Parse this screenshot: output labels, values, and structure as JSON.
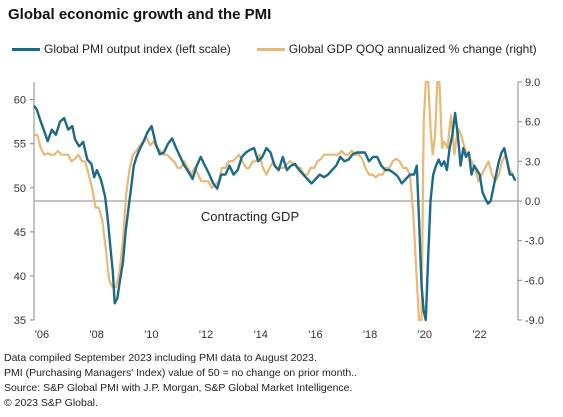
{
  "title": "Global economic growth and the PMI",
  "legend": [
    {
      "label": "Global PMI output index (left scale)",
      "color": "#1b6a87"
    },
    {
      "label": "Global GDP QOQ annualized % change (right)",
      "color": "#e8b976"
    }
  ],
  "annotation": "Contracting GDP",
  "footnotes": [
    "Data compiled September 2023 including PMI data to August 2023.",
    "PMI (Purchasing Managers' Index) value of 50 = no change on prior month..",
    "Source: S&P Global PMI with J.P. Morgan, S&P Global Market Intelligence.",
    "© 2023 S&P Global."
  ],
  "chart_data": {
    "type": "line",
    "title": "Global economic growth and the PMI",
    "xlim": [
      2006,
      2023.7
    ],
    "x_ticks": [
      2006,
      2008,
      2010,
      2012,
      2014,
      2016,
      2018,
      2020,
      2022
    ],
    "x_tick_labels": [
      "'06",
      "'08",
      "'10",
      "'12",
      "'14",
      "'16",
      "'18",
      "'20",
      "'22"
    ],
    "left_axis": {
      "ylim": [
        35,
        62
      ],
      "ticks": [
        35,
        40,
        45,
        50,
        55,
        60
      ],
      "tick_labels": [
        "35",
        "40",
        "45",
        "50",
        "55",
        "60"
      ]
    },
    "right_axis": {
      "ylim": [
        -9,
        9
      ],
      "ticks": [
        -9,
        -6,
        -3,
        0,
        3,
        6,
        9
      ],
      "tick_labels": [
        "-9.0",
        "-6.0",
        "-3.0",
        "0.0",
        "3.0",
        "6.0",
        "9.0"
      ]
    },
    "reference_line": {
      "axis": "right",
      "value": 0
    },
    "series": [
      {
        "name": "Global PMI output index (left scale)",
        "axis": "left",
        "color": "#1b6a87",
        "x": [
          2006.0,
          2006.1,
          2006.25,
          2006.4,
          2006.5,
          2006.65,
          2006.8,
          2006.95,
          2007.1,
          2007.25,
          2007.4,
          2007.5,
          2007.65,
          2007.8,
          2007.95,
          2008.1,
          2008.2,
          2008.3,
          2008.45,
          2008.6,
          2008.7,
          2008.8,
          2008.88,
          2008.95,
          2009.05,
          2009.15,
          2009.25,
          2009.35,
          2009.45,
          2009.55,
          2009.65,
          2009.75,
          2009.85,
          2010.0,
          2010.15,
          2010.3,
          2010.45,
          2010.6,
          2010.75,
          2010.9,
          2011.05,
          2011.2,
          2011.35,
          2011.5,
          2011.65,
          2011.8,
          2011.95,
          2012.1,
          2012.25,
          2012.4,
          2012.55,
          2012.7,
          2012.85,
          2013.0,
          2013.15,
          2013.3,
          2013.45,
          2013.6,
          2013.75,
          2013.9,
          2014.05,
          2014.2,
          2014.35,
          2014.5,
          2014.65,
          2014.8,
          2014.95,
          2015.1,
          2015.25,
          2015.4,
          2015.55,
          2015.7,
          2015.85,
          2016.0,
          2016.15,
          2016.3,
          2016.45,
          2016.6,
          2016.75,
          2016.9,
          2017.05,
          2017.2,
          2017.35,
          2017.5,
          2017.65,
          2017.8,
          2017.95,
          2018.1,
          2018.25,
          2018.4,
          2018.55,
          2018.7,
          2018.85,
          2019.0,
          2019.15,
          2019.3,
          2019.45,
          2019.6,
          2019.75,
          2019.9,
          2020.0,
          2020.08,
          2020.17,
          2020.25,
          2020.33,
          2020.42,
          2020.5,
          2020.6,
          2020.7,
          2020.8,
          2020.9,
          2021.0,
          2021.1,
          2021.2,
          2021.3,
          2021.4,
          2021.5,
          2021.6,
          2021.7,
          2021.8,
          2021.9,
          2022.0,
          2022.1,
          2022.2,
          2022.3,
          2022.4,
          2022.5,
          2022.6,
          2022.7,
          2022.8,
          2022.9,
          2023.0,
          2023.1,
          2023.2,
          2023.3,
          2023.4,
          2023.5,
          2023.6
        ],
        "values": [
          59.3,
          58.9,
          57.5,
          56.2,
          55.3,
          56.6,
          56.0,
          57.5,
          57.9,
          56.6,
          57.0,
          55.5,
          54.7,
          55.2,
          53.2,
          52.7,
          51.2,
          52.0,
          50.9,
          49.0,
          46.4,
          43.0,
          40.5,
          36.9,
          37.5,
          39.6,
          41.5,
          45.0,
          47.5,
          50.0,
          52.5,
          53.5,
          54.3,
          55.2,
          56.3,
          57.0,
          55.0,
          53.8,
          54.0,
          55.0,
          55.6,
          54.5,
          53.5,
          52.5,
          51.8,
          51.0,
          52.5,
          53.5,
          52.5,
          51.6,
          50.5,
          49.9,
          51.5,
          51.5,
          52.5,
          51.5,
          52.0,
          53.5,
          54.0,
          54.3,
          54.5,
          53.0,
          53.5,
          54.5,
          54.0,
          52.5,
          52.0,
          53.5,
          52.0,
          52.5,
          52.7,
          52.0,
          51.5,
          51.0,
          50.5,
          51.0,
          51.5,
          51.2,
          51.5,
          52.0,
          52.5,
          53.5,
          53.0,
          53.2,
          53.8,
          54.0,
          54.0,
          54.0,
          53.0,
          53.5,
          53.5,
          52.5,
          52.0,
          52.0,
          51.7,
          51.3,
          50.5,
          51.0,
          51.5,
          51.5,
          52.5,
          46.5,
          39.0,
          36.0,
          35.0,
          42.5,
          48.5,
          51.5,
          52.5,
          53.2,
          52.5,
          53.0,
          52.0,
          54.5,
          56.0,
          58.5,
          56.0,
          52.5,
          54.5,
          53.5,
          54.0,
          51.5,
          52.5,
          52.0,
          51.5,
          49.5,
          48.8,
          48.2,
          48.5,
          50.0,
          51.5,
          53.0,
          54.0,
          54.5,
          53.0,
          51.5,
          51.5,
          50.8
        ]
      },
      {
        "name": "Global GDP QOQ annualized % change (right)",
        "axis": "right",
        "color": "#e8b976",
        "x": [
          2006.0,
          2006.12,
          2006.25,
          2006.37,
          2006.5,
          2006.62,
          2006.75,
          2006.87,
          2007.0,
          2007.12,
          2007.25,
          2007.37,
          2007.5,
          2007.62,
          2007.75,
          2007.87,
          2008.0,
          2008.12,
          2008.25,
          2008.37,
          2008.5,
          2008.62,
          2008.75,
          2008.87,
          2009.0,
          2009.12,
          2009.25,
          2009.37,
          2009.5,
          2009.62,
          2009.75,
          2009.87,
          2010.0,
          2010.12,
          2010.25,
          2010.37,
          2010.5,
          2010.62,
          2010.75,
          2010.87,
          2011.0,
          2011.12,
          2011.25,
          2011.37,
          2011.5,
          2011.62,
          2011.75,
          2011.87,
          2012.0,
          2012.12,
          2012.25,
          2012.37,
          2012.5,
          2012.62,
          2012.75,
          2012.87,
          2013.0,
          2013.12,
          2013.25,
          2013.37,
          2013.5,
          2013.62,
          2013.75,
          2013.87,
          2014.0,
          2014.12,
          2014.25,
          2014.37,
          2014.5,
          2014.62,
          2014.75,
          2014.87,
          2015.0,
          2015.12,
          2015.25,
          2015.37,
          2015.5,
          2015.62,
          2015.75,
          2015.87,
          2016.0,
          2016.12,
          2016.25,
          2016.37,
          2016.5,
          2016.62,
          2016.75,
          2016.87,
          2017.0,
          2017.12,
          2017.25,
          2017.37,
          2017.5,
          2017.62,
          2017.75,
          2017.87,
          2018.0,
          2018.12,
          2018.25,
          2018.37,
          2018.5,
          2018.62,
          2018.75,
          2018.87,
          2019.0,
          2019.12,
          2019.25,
          2019.37,
          2019.5,
          2019.62,
          2019.75,
          2019.87,
          2020.0,
          2020.08,
          2020.17,
          2020.25,
          2020.33,
          2020.42,
          2020.5,
          2020.58,
          2020.67,
          2020.75,
          2020.83,
          2020.92,
          2021.0,
          2021.12,
          2021.25,
          2021.37,
          2021.5,
          2021.62,
          2021.75,
          2021.87,
          2022.0,
          2022.12,
          2022.25,
          2022.37,
          2022.5,
          2022.62,
          2022.75,
          2022.87,
          2023.0,
          2023.12,
          2023.25,
          2023.37,
          2023.5
        ],
        "values": [
          5.0,
          5.0,
          4.0,
          3.5,
          3.6,
          3.5,
          3.5,
          3.8,
          3.5,
          3.5,
          3.5,
          3.0,
          3.2,
          3.5,
          3.0,
          3.0,
          2.0,
          1.0,
          -0.5,
          -0.5,
          -1.5,
          -3.5,
          -6.0,
          -6.5,
          -6.5,
          -5.5,
          -3.0,
          0.5,
          2.5,
          3.5,
          3.8,
          4.2,
          4.5,
          4.8,
          4.2,
          4.5,
          4.0,
          3.8,
          3.5,
          3.5,
          3.2,
          3.0,
          2.5,
          2.5,
          3.0,
          2.5,
          2.0,
          2.5,
          2.0,
          1.5,
          1.5,
          1.5,
          1.0,
          1.2,
          1.5,
          2.5,
          2.5,
          3.0,
          3.0,
          3.2,
          3.5,
          3.0,
          2.5,
          2.5,
          3.0,
          3.0,
          3.5,
          2.5,
          2.0,
          2.5,
          3.0,
          2.5,
          2.5,
          2.5,
          2.8,
          3.0,
          2.8,
          2.5,
          2.5,
          2.0,
          2.0,
          2.5,
          2.5,
          3.0,
          3.2,
          3.5,
          3.5,
          3.5,
          3.5,
          3.5,
          3.8,
          3.5,
          3.5,
          3.8,
          3.5,
          3.5,
          3.2,
          2.5,
          2.0,
          2.0,
          1.8,
          2.0,
          2.0,
          2.5,
          2.5,
          3.0,
          3.2,
          3.0,
          2.5,
          2.5,
          2.0,
          -1.0,
          -6.0,
          -9.0,
          -9.0,
          6.0,
          9.0,
          9.0,
          5.5,
          3.5,
          5.0,
          9.0,
          9.0,
          4.0,
          4.5,
          4.0,
          6.5,
          3.5,
          5.5,
          5.0,
          4.0,
          3.5,
          3.0,
          2.5,
          1.5,
          2.0,
          2.5,
          3.0,
          2.0,
          1.5,
          2.0,
          3.0,
          3.5,
          2.5,
          2.0
        ]
      }
    ]
  }
}
